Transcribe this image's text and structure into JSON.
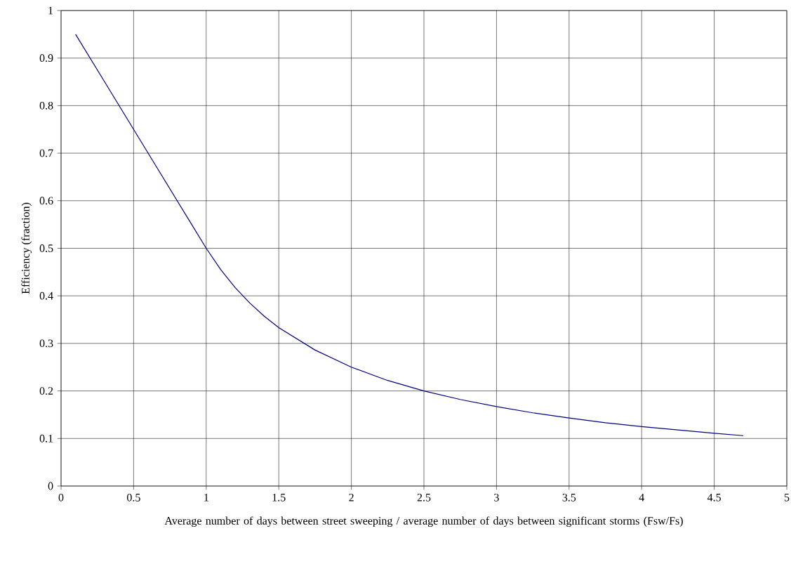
{
  "chart_data": {
    "type": "line",
    "xlabel": "Average number of days between street sweeping / average number of days between significant storms (Fsw/Fs)",
    "ylabel": "Efficiency (fraction)",
    "series": [
      {
        "color": "#000080",
        "x": [
          0.1,
          0.3,
          0.5,
          0.7,
          0.9,
          1.0,
          1.1,
          1.2,
          1.3,
          1.4,
          1.5,
          1.75,
          2.0,
          2.25,
          2.5,
          2.75,
          3.0,
          3.25,
          3.5,
          3.75,
          4.0,
          4.25,
          4.5,
          4.7
        ],
        "values": [
          0.95,
          0.85,
          0.75,
          0.65,
          0.55,
          0.5,
          0.455,
          0.417,
          0.385,
          0.357,
          0.333,
          0.286,
          0.25,
          0.222,
          0.2,
          0.182,
          0.167,
          0.154,
          0.143,
          0.133,
          0.125,
          0.118,
          0.111,
          0.106
        ]
      }
    ],
    "xlim": [
      0,
      5
    ],
    "ylim": [
      0,
      1
    ],
    "xticks": [
      0,
      0.5,
      1,
      1.5,
      2,
      2.5,
      3,
      3.5,
      4,
      4.5,
      5
    ],
    "yticks": [
      0,
      0.1,
      0.2,
      0.3,
      0.4,
      0.5,
      0.6,
      0.7,
      0.8,
      0.9,
      1
    ],
    "grid": true,
    "line_style": "solid"
  }
}
